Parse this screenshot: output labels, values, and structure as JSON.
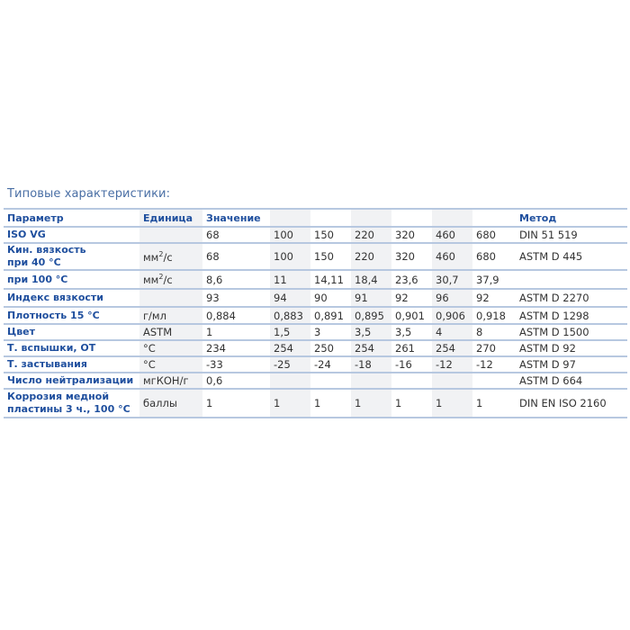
{
  "title": "Типовые характеристики:",
  "header": {
    "param": "Параметр",
    "unit": "Единица",
    "value": "Значение",
    "method": "Метод"
  },
  "rows": [
    {
      "param": "ISO VG",
      "unit": "",
      "values": [
        "68",
        "100",
        "150",
        "220",
        "320",
        "460",
        "680"
      ],
      "method": "DIN 51 519"
    },
    {
      "param": "Кин. вязкость\nпри  40 °С",
      "unit": "мм²/с",
      "values": [
        "68",
        "100",
        "150",
        "220",
        "320",
        "460",
        "680"
      ],
      "method": "ASTM D 445"
    },
    {
      "param": "при 100 °С",
      "unit": "мм²/с",
      "values": [
        "8,6",
        "11",
        "14,11",
        "18,4",
        "23,6",
        "30,7",
        "37,9"
      ],
      "method": ""
    },
    {
      "param": "Индекс вязкости",
      "unit": "",
      "values": [
        "93",
        "94",
        "90",
        "91",
        "92",
        "96",
        "92"
      ],
      "method": "ASTM D 2270"
    },
    {
      "param": "Плотность 15 °С",
      "unit": "г/мл",
      "values": [
        "0,884",
        "0,883",
        "0,891",
        "0,895",
        "0,901",
        "0,906",
        "0,918"
      ],
      "method": "ASTM D 1298"
    },
    {
      "param": "Цвет",
      "unit": "ASTM",
      "values": [
        "1",
        "1,5",
        "3",
        "3,5",
        "3,5",
        "4",
        "8"
      ],
      "method": "ASTM D 1500"
    },
    {
      "param": "Т. вспышки, ОТ",
      "unit": "°С",
      "values": [
        "234",
        "254",
        "250",
        "254",
        "261",
        "254",
        "270"
      ],
      "method": "ASTM D 92"
    },
    {
      "param": "Т. застывания",
      "unit": "°С",
      "values": [
        "-33",
        "-25",
        "-24",
        "-18",
        "-16",
        "-12",
        "-12"
      ],
      "method": "ASTM D 97"
    },
    {
      "param": "Число нейтрализации",
      "unit": "мгКОН/г",
      "values": [
        "0,6",
        "",
        "",
        "",
        "",
        "",
        ""
      ],
      "method": "ASTM D 664"
    },
    {
      "param": "Коррозия медной\nпластины 3 ч., 100 °С",
      "unit": "баллы",
      "values": [
        "1",
        "1",
        "1",
        "1",
        "1",
        "1",
        "1"
      ],
      "method": "DIN EN ISO 2160"
    }
  ],
  "colors": {
    "accent": "#1f4f9e",
    "border": "#b7c8e0",
    "shade": "#f1f2f4"
  }
}
